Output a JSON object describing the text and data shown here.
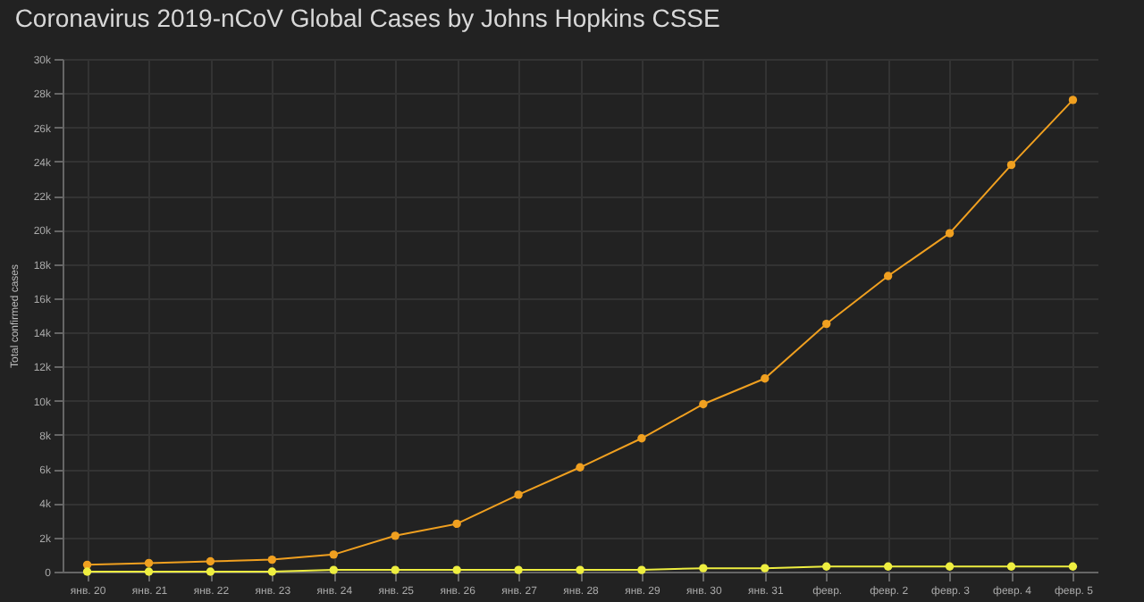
{
  "chart_data": {
    "type": "line",
    "title": "Coronavirus 2019-nCoV Global Cases by Johns Hopkins CSSE",
    "ylabel": "Total confirmed cases",
    "categories": [
      "янв. 20",
      "янв. 21",
      "янв. 22",
      "янв. 23",
      "янв. 24",
      "янв. 25",
      "янв. 26",
      "янв. 27",
      "янв. 28",
      "янв. 29",
      "янв. 30",
      "янв. 31",
      "февр.",
      "февр. 2",
      "февр. 3",
      "февр. 4",
      "февр. 5"
    ],
    "series": [
      {
        "color": "#f0a020",
        "values": [
          400,
          500,
          600,
          700,
          1000,
          2100,
          2800,
          4500,
          6100,
          7800,
          9800,
          11300,
          14500,
          17300,
          19800,
          23800,
          27600
        ]
      },
      {
        "color": "#eeee40",
        "values": [
          0,
          0,
          0,
          0,
          100,
          100,
          100,
          100,
          100,
          100,
          200,
          200,
          300,
          300,
          300,
          300,
          300
        ]
      }
    ],
    "ylim": [
      0,
      30000
    ],
    "yticks": [
      0,
      {
        "value": 2000,
        "label": "2k"
      },
      {
        "value": 4000,
        "label": "4k"
      },
      {
        "value": 6000,
        "label": "6k"
      },
      {
        "value": 8000,
        "label": "8k"
      },
      {
        "value": 10000,
        "label": "10k"
      },
      {
        "value": 12000,
        "label": "12k"
      },
      {
        "value": 14000,
        "label": "14k"
      },
      {
        "value": 16000,
        "label": "16k"
      },
      {
        "value": 18000,
        "label": "18k"
      },
      {
        "value": 20000,
        "label": "20k"
      },
      {
        "value": 22000,
        "label": "22k"
      },
      {
        "value": 24000,
        "label": "24k"
      },
      {
        "value": 26000,
        "label": "26k"
      },
      {
        "value": 28000,
        "label": "28k"
      },
      {
        "value": 30000,
        "label": "30k"
      }
    ],
    "grid": true,
    "marker": "circle",
    "line_style": "solid"
  }
}
